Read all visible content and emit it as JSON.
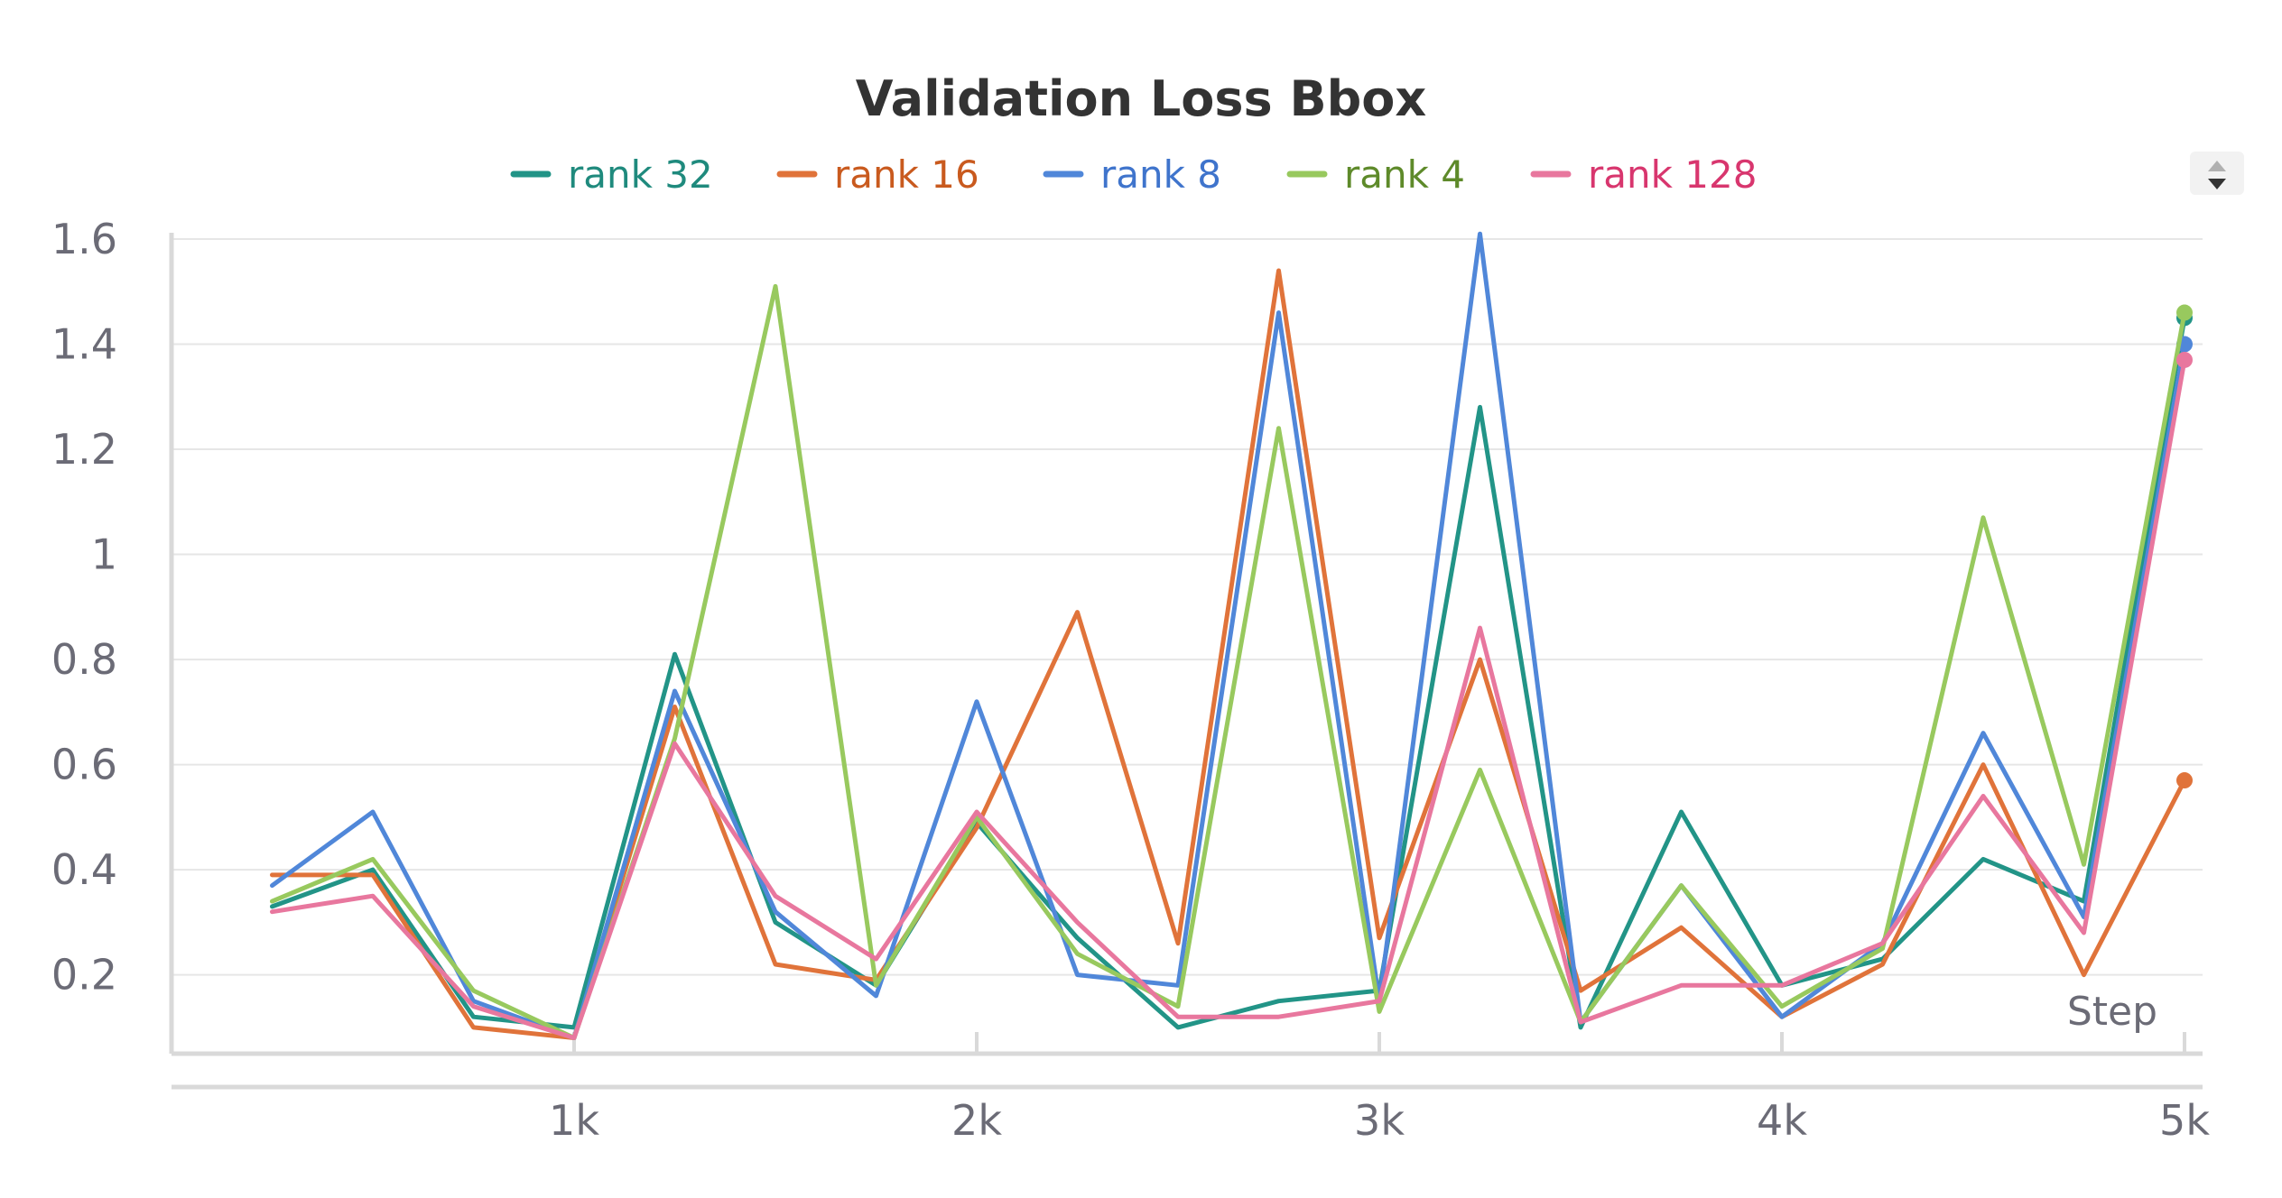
{
  "chart_data": {
    "type": "line",
    "title": "Validation Loss Bbox",
    "xlabel": "Step",
    "ylabel": "",
    "xlim": [
      0,
      5050
    ],
    "ylim": [
      0.05,
      1.6
    ],
    "y_ticks": [
      0.2,
      0.4,
      0.6,
      0.8,
      1,
      1.2,
      1.4,
      1.6
    ],
    "y_tick_labels": [
      "0.2",
      "0.4",
      "0.6",
      "0.8",
      "1",
      "1.2",
      "1.4",
      "1.6"
    ],
    "x_ticks": [
      1000,
      2000,
      3000,
      4000,
      5000
    ],
    "x_tick_labels": [
      "1k",
      "2k",
      "3k",
      "4k",
      "5k"
    ],
    "grid": true,
    "legend_position": "top-center",
    "x": [
      250,
      500,
      750,
      1000,
      1250,
      1500,
      1750,
      2000,
      2250,
      2500,
      2750,
      3000,
      3250,
      3500,
      3750,
      4000,
      4250,
      4500,
      4750,
      5000
    ],
    "series": [
      {
        "name": "rank 32",
        "color": "#229487",
        "values": [
          0.33,
          0.4,
          0.12,
          0.1,
          0.81,
          0.3,
          0.18,
          0.49,
          0.27,
          0.1,
          0.15,
          0.17,
          1.28,
          0.1,
          0.51,
          0.18,
          0.23,
          0.42,
          0.34,
          1.45
        ]
      },
      {
        "name": "rank 16",
        "color": "#e0733a",
        "values": [
          0.39,
          0.39,
          0.1,
          0.08,
          0.71,
          0.22,
          0.19,
          0.48,
          0.89,
          0.26,
          1.54,
          0.27,
          0.8,
          0.17,
          0.29,
          0.12,
          0.22,
          0.6,
          0.2,
          0.57
        ]
      },
      {
        "name": "rank 8",
        "color": "#5087d9",
        "values": [
          0.37,
          0.51,
          0.15,
          0.08,
          0.74,
          0.32,
          0.16,
          0.72,
          0.2,
          0.18,
          1.46,
          0.15,
          1.61,
          0.11,
          0.37,
          0.12,
          0.26,
          0.66,
          0.31,
          1.4
        ]
      },
      {
        "name": "rank 4",
        "color": "#98c95e",
        "values": [
          0.34,
          0.42,
          0.17,
          0.08,
          0.65,
          1.51,
          0.18,
          0.5,
          0.24,
          0.14,
          1.24,
          0.13,
          0.59,
          0.11,
          0.37,
          0.14,
          0.25,
          1.07,
          0.41,
          1.46
        ]
      },
      {
        "name": "rank 128",
        "color": "#e8779e",
        "values": [
          0.32,
          0.35,
          0.14,
          0.08,
          0.64,
          0.35,
          0.23,
          0.51,
          0.3,
          0.12,
          0.12,
          0.15,
          0.86,
          0.11,
          0.18,
          0.18,
          0.26,
          0.54,
          0.28,
          1.37
        ]
      }
    ],
    "legend_text_colors": [
      "#1f8a7d",
      "#c95a1e",
      "#3f74cc",
      "#5e8a2a",
      "#d8366e"
    ]
  }
}
